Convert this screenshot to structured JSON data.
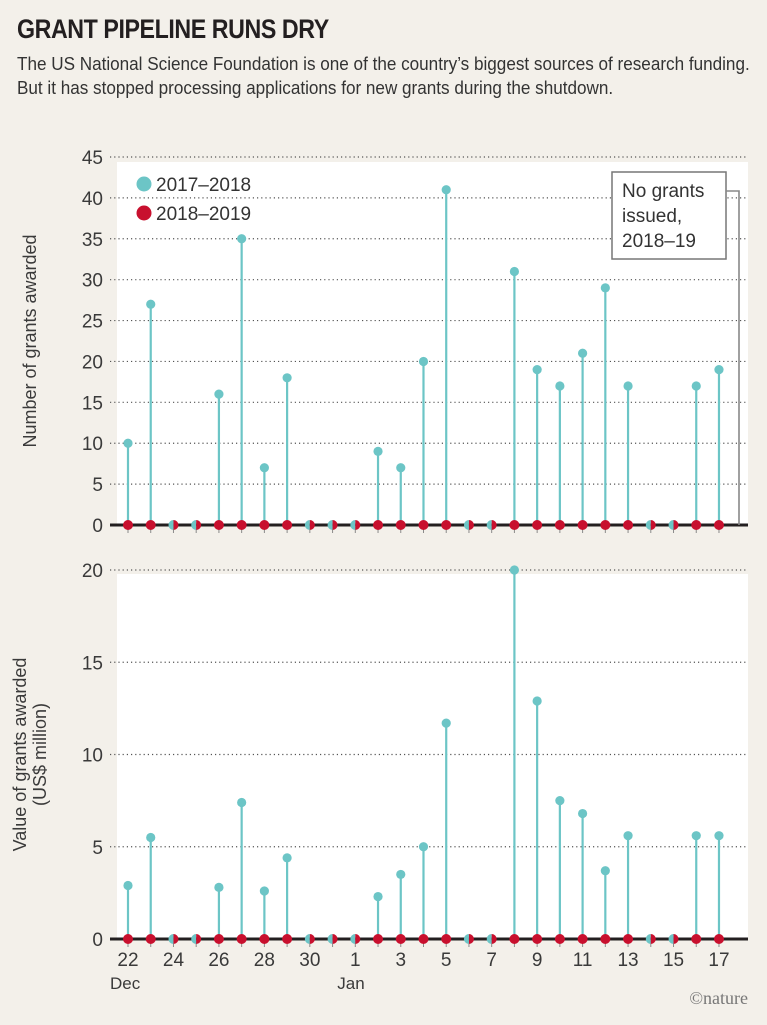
{
  "title": "GRANT PIPELINE RUNS DRY",
  "subtitle": "The US National Science Foundation is one of the country’s biggest sources of research funding. But it has stopped processing applications for new grants during the shutdown.",
  "credit": "©nature",
  "colors": {
    "series_2017_2018": "#6cc5c6",
    "series_2018_2019": "#c8102e",
    "baseline": "#231f20",
    "grid": "#555555",
    "plot_bg": "#ffffff",
    "page_bg": "#f3f0ea"
  },
  "chart_data": [
    {
      "type": "lollipop",
      "title": "",
      "xlabel": "",
      "ylabel": "Number of grants awarded",
      "ylim": [
        0,
        45
      ],
      "yticks": [
        0,
        5,
        10,
        15,
        20,
        25,
        30,
        35,
        40,
        45
      ],
      "grid": "horizontal-dotted",
      "legend": {
        "placement": "top-left",
        "entries": [
          {
            "label": "2017–2018",
            "color": "#6cc5c6"
          },
          {
            "label": "2018–2019",
            "color": "#c8102e"
          }
        ]
      },
      "annotation": {
        "lines": [
          "No grants",
          "issued,",
          "2018–19"
        ],
        "placement": "top-right"
      },
      "x": [
        "Dec 22",
        "Dec 23",
        "Dec 24",
        "Dec 25",
        "Dec 26",
        "Dec 27",
        "Dec 28",
        "Dec 29",
        "Dec 30",
        "Dec 31",
        "Jan 1",
        "Jan 2",
        "Jan 3",
        "Jan 4",
        "Jan 5",
        "Jan 6",
        "Jan 7",
        "Jan 8",
        "Jan 9",
        "Jan 10",
        "Jan 11",
        "Jan 12",
        "Jan 13",
        "Jan 14",
        "Jan 15",
        "Jan 16",
        "Jan 17"
      ],
      "series": [
        {
          "name": "2017–2018",
          "values": [
            10,
            27,
            0,
            0,
            16,
            35,
            7,
            18,
            0,
            0,
            0,
            9,
            7,
            20,
            41,
            0,
            0,
            31,
            19,
            17,
            21,
            29,
            17,
            0,
            0,
            17,
            19
          ]
        },
        {
          "name": "2018–2019",
          "values": [
            0,
            0,
            0,
            0,
            0,
            0,
            0,
            0,
            0,
            0,
            0,
            0,
            0,
            0,
            0,
            0,
            0,
            0,
            0,
            0,
            0,
            0,
            0,
            0,
            0,
            0,
            0
          ]
        }
      ]
    },
    {
      "type": "lollipop",
      "title": "",
      "xlabel": "",
      "ylabel": "Value of grants awarded (US$ million)",
      "ylabel_lines": [
        "Value of grants awarded",
        "(US$ million)"
      ],
      "ylim": [
        0,
        20
      ],
      "yticks": [
        0,
        5,
        10,
        15,
        20
      ],
      "grid": "horizontal-dotted",
      "xtick_labels": [
        {
          "index": 0,
          "label": "22",
          "sub": "Dec"
        },
        {
          "index": 2,
          "label": "24"
        },
        {
          "index": 4,
          "label": "26"
        },
        {
          "index": 6,
          "label": "28"
        },
        {
          "index": 8,
          "label": "30"
        },
        {
          "index": 10,
          "label": "1",
          "sub": "Jan"
        },
        {
          "index": 12,
          "label": "3"
        },
        {
          "index": 14,
          "label": "5"
        },
        {
          "index": 16,
          "label": "7"
        },
        {
          "index": 18,
          "label": "9"
        },
        {
          "index": 20,
          "label": "11"
        },
        {
          "index": 22,
          "label": "13"
        },
        {
          "index": 24,
          "label": "15"
        },
        {
          "index": 26,
          "label": "17"
        }
      ],
      "x": [
        "Dec 22",
        "Dec 23",
        "Dec 24",
        "Dec 25",
        "Dec 26",
        "Dec 27",
        "Dec 28",
        "Dec 29",
        "Dec 30",
        "Dec 31",
        "Jan 1",
        "Jan 2",
        "Jan 3",
        "Jan 4",
        "Jan 5",
        "Jan 6",
        "Jan 7",
        "Jan 8",
        "Jan 9",
        "Jan 10",
        "Jan 11",
        "Jan 12",
        "Jan 13",
        "Jan 14",
        "Jan 15",
        "Jan 16",
        "Jan 17"
      ],
      "series": [
        {
          "name": "2017–2018",
          "values": [
            2.9,
            5.5,
            0,
            0,
            2.8,
            7.4,
            2.6,
            4.4,
            0,
            0,
            0,
            2.3,
            3.5,
            5.0,
            11.7,
            0,
            0,
            20.0,
            12.9,
            7.5,
            6.8,
            3.7,
            5.6,
            0,
            0,
            5.6,
            5.6
          ]
        },
        {
          "name": "2018–2019",
          "values": [
            0,
            0,
            0,
            0,
            0,
            0,
            0,
            0,
            0,
            0,
            0,
            0,
            0,
            0,
            0,
            0,
            0,
            0,
            0,
            0,
            0,
            0,
            0,
            0,
            0,
            0,
            0
          ]
        }
      ]
    }
  ]
}
